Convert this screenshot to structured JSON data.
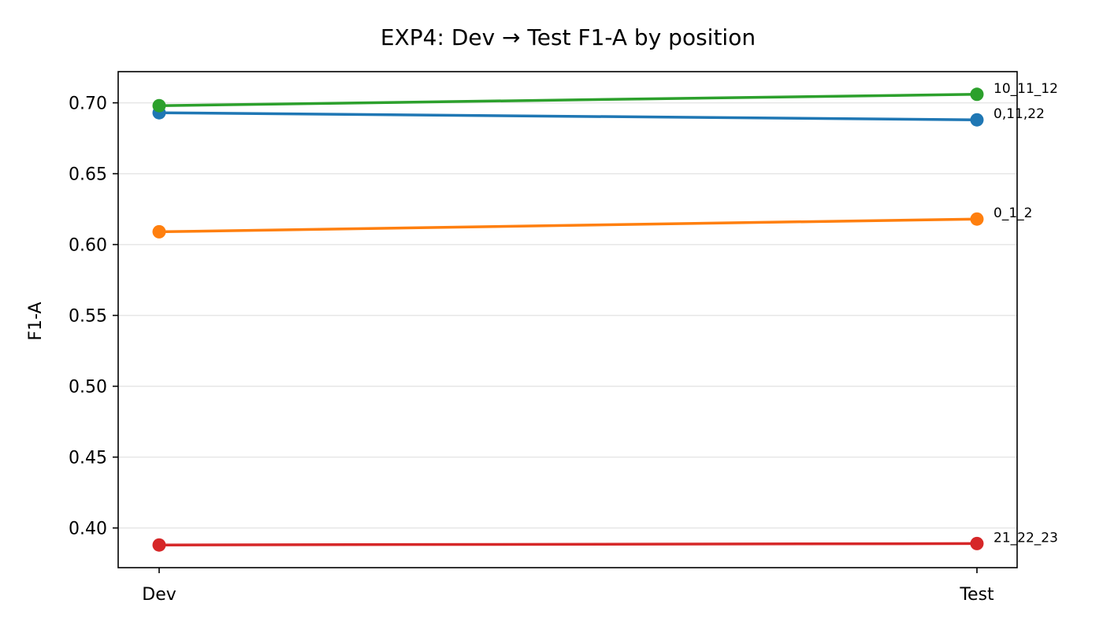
{
  "chart_data": {
    "type": "line",
    "title": "EXP4: Dev → Test F1-A by position",
    "xlabel": "",
    "ylabel": "F1-A",
    "categories": [
      "Dev",
      "Test"
    ],
    "ylim": [
      0.372,
      0.722
    ],
    "yticks": [
      "0.40",
      "0.45",
      "0.50",
      "0.55",
      "0.60",
      "0.65",
      "0.70"
    ],
    "grid": "horizontal",
    "legend": "none",
    "series": [
      {
        "name": "0,11,22",
        "color": "#1f77b4",
        "values": [
          0.693,
          0.688
        ]
      },
      {
        "name": "0_1_2",
        "color": "#ff7f0e",
        "values": [
          0.609,
          0.618
        ]
      },
      {
        "name": "10_11_12",
        "color": "#2ca02c",
        "values": [
          0.698,
          0.706
        ]
      },
      {
        "name": "21_22_23",
        "color": "#d62728",
        "values": [
          0.388,
          0.389
        ]
      }
    ]
  }
}
